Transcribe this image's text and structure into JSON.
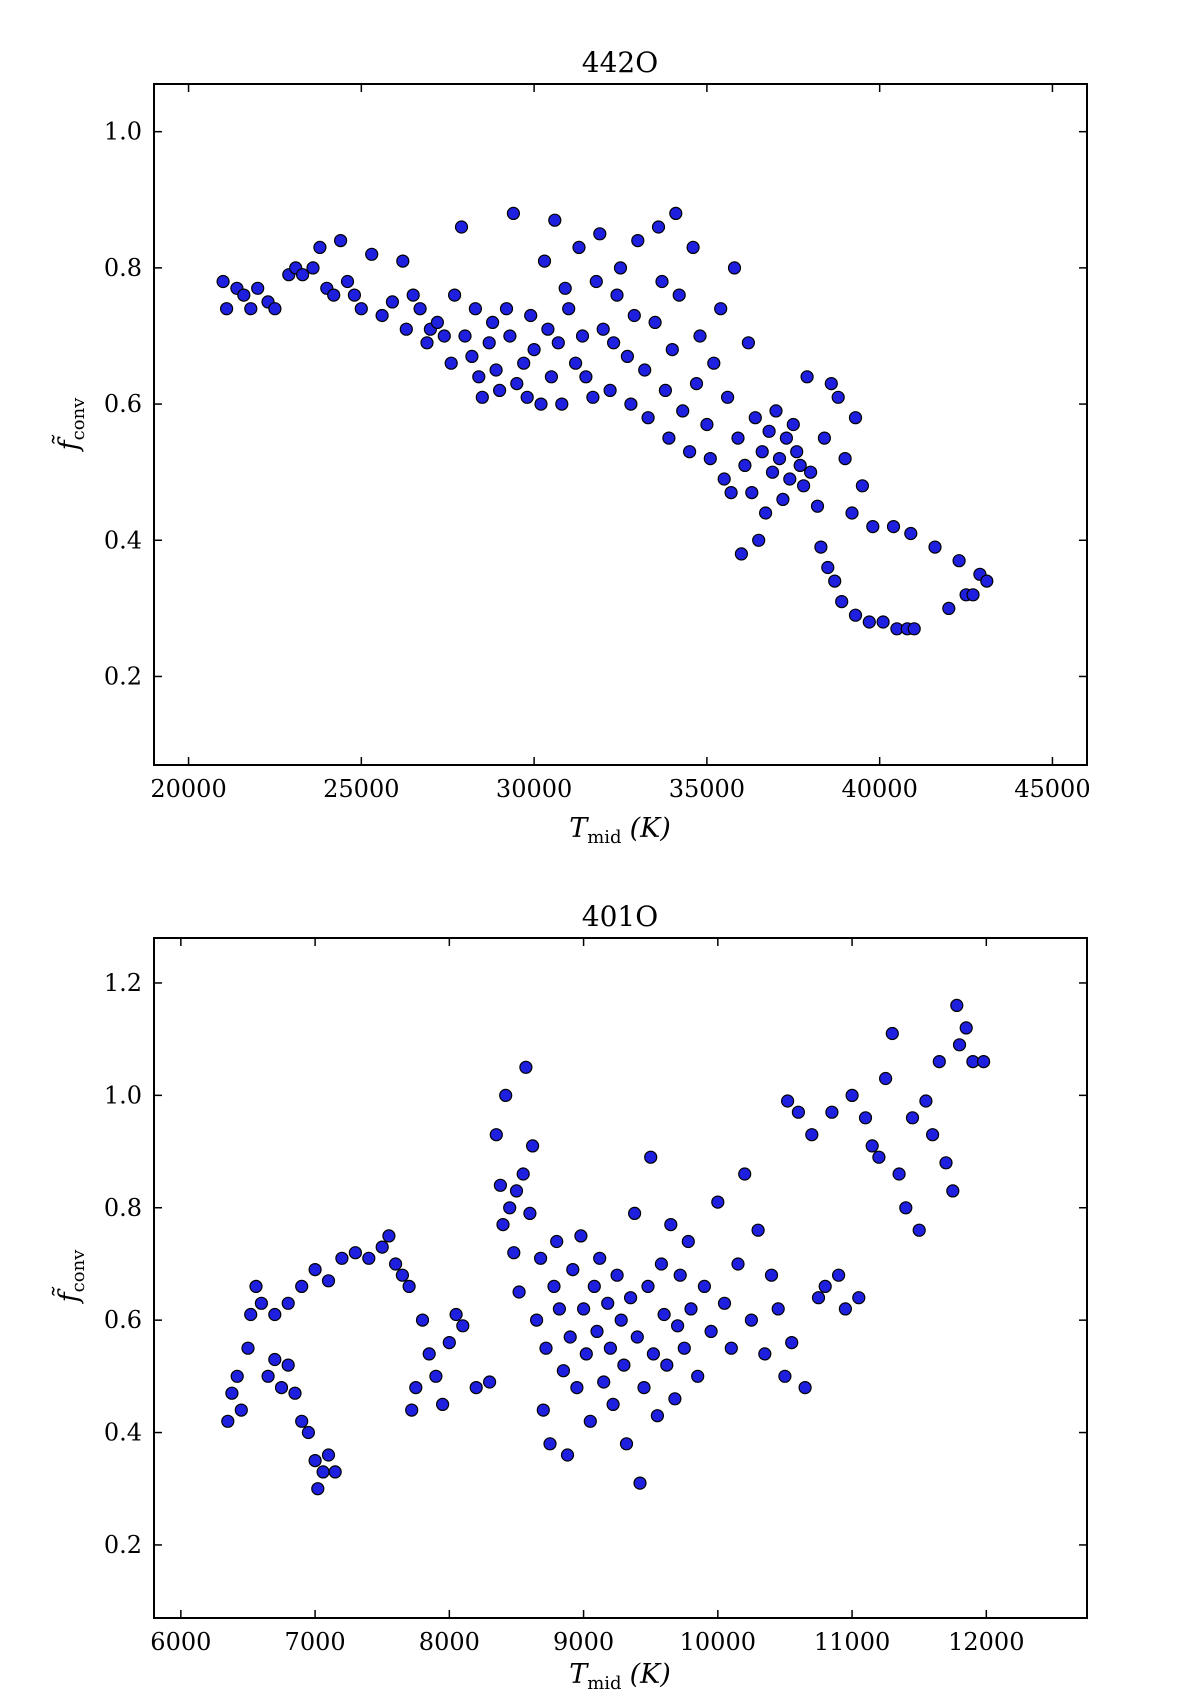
{
  "chart_data": [
    {
      "type": "scatter",
      "title": "442O",
      "xlabel": "T",
      "xlabel_sub": "mid",
      "xlabel_unit": "(K)",
      "ylabel": "f̃",
      "ylabel_sub": "conv",
      "xlim": [
        19000,
        46000
      ],
      "ylim": [
        0.07,
        1.07
      ],
      "xticks": [
        20000,
        25000,
        30000,
        35000,
        40000,
        45000
      ],
      "yticks": [
        0.2,
        0.4,
        0.6,
        0.8,
        1.0
      ],
      "xtick_labels": [
        "20000",
        "25000",
        "30000",
        "35000",
        "40000",
        "45000"
      ],
      "ytick_labels": [
        "0.2",
        "0.4",
        "0.6",
        "0.8",
        "1.0"
      ],
      "marker_color": "#1f1fe0",
      "points": [
        [
          21000,
          0.78
        ],
        [
          21100,
          0.74
        ],
        [
          21400,
          0.77
        ],
        [
          21600,
          0.76
        ],
        [
          21800,
          0.74
        ],
        [
          22000,
          0.77
        ],
        [
          22300,
          0.75
        ],
        [
          22500,
          0.74
        ],
        [
          22900,
          0.79
        ],
        [
          23100,
          0.8
        ],
        [
          23300,
          0.79
        ],
        [
          23600,
          0.8
        ],
        [
          23800,
          0.83
        ],
        [
          24000,
          0.77
        ],
        [
          24200,
          0.76
        ],
        [
          24400,
          0.84
        ],
        [
          24600,
          0.78
        ],
        [
          24800,
          0.76
        ],
        [
          25000,
          0.74
        ],
        [
          25300,
          0.82
        ],
        [
          25600,
          0.73
        ],
        [
          25900,
          0.75
        ],
        [
          26200,
          0.81
        ],
        [
          26300,
          0.71
        ],
        [
          26500,
          0.76
        ],
        [
          26700,
          0.74
        ],
        [
          26900,
          0.69
        ],
        [
          27000,
          0.71
        ],
        [
          27200,
          0.72
        ],
        [
          27400,
          0.7
        ],
        [
          27600,
          0.66
        ],
        [
          27700,
          0.76
        ],
        [
          27900,
          0.86
        ],
        [
          28000,
          0.7
        ],
        [
          28200,
          0.67
        ],
        [
          28300,
          0.74
        ],
        [
          28400,
          0.64
        ],
        [
          28500,
          0.61
        ],
        [
          28700,
          0.69
        ],
        [
          28800,
          0.72
        ],
        [
          28900,
          0.65
        ],
        [
          29000,
          0.62
        ],
        [
          29200,
          0.74
        ],
        [
          29300,
          0.7
        ],
        [
          29400,
          0.88
        ],
        [
          29500,
          0.63
        ],
        [
          29700,
          0.66
        ],
        [
          29800,
          0.61
        ],
        [
          29900,
          0.73
        ],
        [
          30000,
          0.68
        ],
        [
          30200,
          0.6
        ],
        [
          30300,
          0.81
        ],
        [
          30400,
          0.71
        ],
        [
          30500,
          0.64
        ],
        [
          30600,
          0.87
        ],
        [
          30700,
          0.69
        ],
        [
          30800,
          0.6
        ],
        [
          30900,
          0.77
        ],
        [
          31000,
          0.74
        ],
        [
          31200,
          0.66
        ],
        [
          31300,
          0.83
        ],
        [
          31400,
          0.7
        ],
        [
          31500,
          0.64
        ],
        [
          31700,
          0.61
        ],
        [
          31800,
          0.78
        ],
        [
          31900,
          0.85
        ],
        [
          32000,
          0.71
        ],
        [
          32200,
          0.62
        ],
        [
          32300,
          0.69
        ],
        [
          32400,
          0.76
        ],
        [
          32500,
          0.8
        ],
        [
          32700,
          0.67
        ],
        [
          32800,
          0.6
        ],
        [
          32900,
          0.73
        ],
        [
          33000,
          0.84
        ],
        [
          33200,
          0.65
        ],
        [
          33300,
          0.58
        ],
        [
          33500,
          0.72
        ],
        [
          33600,
          0.86
        ],
        [
          33700,
          0.78
        ],
        [
          33800,
          0.62
        ],
        [
          33900,
          0.55
        ],
        [
          34000,
          0.68
        ],
        [
          34100,
          0.88
        ],
        [
          34200,
          0.76
        ],
        [
          34300,
          0.59
        ],
        [
          34500,
          0.53
        ],
        [
          34600,
          0.83
        ],
        [
          34700,
          0.63
        ],
        [
          34800,
          0.7
        ],
        [
          35000,
          0.57
        ],
        [
          35100,
          0.52
        ],
        [
          35200,
          0.66
        ],
        [
          35400,
          0.74
        ],
        [
          35500,
          0.49
        ],
        [
          35600,
          0.61
        ],
        [
          35700,
          0.47
        ],
        [
          35800,
          0.8
        ],
        [
          35900,
          0.55
        ],
        [
          36000,
          0.38
        ],
        [
          36100,
          0.51
        ],
        [
          36200,
          0.69
        ],
        [
          36300,
          0.47
        ],
        [
          36400,
          0.58
        ],
        [
          36500,
          0.4
        ],
        [
          36600,
          0.53
        ],
        [
          36700,
          0.44
        ],
        [
          36800,
          0.56
        ],
        [
          36900,
          0.5
        ],
        [
          37000,
          0.59
        ],
        [
          37100,
          0.52
        ],
        [
          37200,
          0.46
        ],
        [
          37300,
          0.55
        ],
        [
          37400,
          0.49
        ],
        [
          37500,
          0.57
        ],
        [
          37600,
          0.53
        ],
        [
          37700,
          0.51
        ],
        [
          37800,
          0.48
        ],
        [
          37900,
          0.64
        ],
        [
          38000,
          0.5
        ],
        [
          38200,
          0.45
        ],
        [
          38400,
          0.55
        ],
        [
          38600,
          0.63
        ],
        [
          38800,
          0.61
        ],
        [
          39000,
          0.52
        ],
        [
          39200,
          0.44
        ],
        [
          39300,
          0.58
        ],
        [
          39500,
          0.48
        ],
        [
          38300,
          0.39
        ],
        [
          38500,
          0.36
        ],
        [
          38700,
          0.34
        ],
        [
          38900,
          0.31
        ],
        [
          39300,
          0.29
        ],
        [
          39700,
          0.28
        ],
        [
          40100,
          0.28
        ],
        [
          40500,
          0.27
        ],
        [
          40800,
          0.27
        ],
        [
          41000,
          0.27
        ],
        [
          39800,
          0.42
        ],
        [
          40400,
          0.42
        ],
        [
          40900,
          0.41
        ],
        [
          41600,
          0.39
        ],
        [
          42000,
          0.3
        ],
        [
          42300,
          0.37
        ],
        [
          42500,
          0.32
        ],
        [
          42700,
          0.32
        ],
        [
          42900,
          0.35
        ],
        [
          43100,
          0.34
        ]
      ]
    },
    {
      "type": "scatter",
      "title": "401O",
      "xlabel": "T",
      "xlabel_sub": "mid",
      "xlabel_unit": "(K)",
      "ylabel": "f̃",
      "ylabel_sub": "conv",
      "xlim": [
        5800,
        12750
      ],
      "ylim": [
        0.07,
        1.28
      ],
      "xticks": [
        6000,
        7000,
        8000,
        9000,
        10000,
        11000,
        12000
      ],
      "yticks": [
        0.2,
        0.4,
        0.6,
        0.8,
        1.0,
        1.2
      ],
      "xtick_labels": [
        "6000",
        "7000",
        "8000",
        "9000",
        "10000",
        "11000",
        "12000"
      ],
      "ytick_labels": [
        "0.2",
        "0.4",
        "0.6",
        "0.8",
        "1.0",
        "1.2"
      ],
      "marker_color": "#1f1fe0",
      "points": [
        [
          6350,
          0.42
        ],
        [
          6380,
          0.47
        ],
        [
          6420,
          0.5
        ],
        [
          6450,
          0.44
        ],
        [
          6500,
          0.55
        ],
        [
          6520,
          0.61
        ],
        [
          6560,
          0.66
        ],
        [
          6600,
          0.63
        ],
        [
          6650,
          0.5
        ],
        [
          6700,
          0.53
        ],
        [
          6750,
          0.48
        ],
        [
          6800,
          0.52
        ],
        [
          6850,
          0.47
        ],
        [
          6900,
          0.42
        ],
        [
          6950,
          0.4
        ],
        [
          7000,
          0.35
        ],
        [
          7020,
          0.3
        ],
        [
          7060,
          0.33
        ],
        [
          7100,
          0.36
        ],
        [
          7150,
          0.33
        ],
        [
          6700,
          0.61
        ],
        [
          6800,
          0.63
        ],
        [
          6900,
          0.66
        ],
        [
          7000,
          0.69
        ],
        [
          7100,
          0.67
        ],
        [
          7200,
          0.71
        ],
        [
          7300,
          0.72
        ],
        [
          7400,
          0.71
        ],
        [
          7500,
          0.73
        ],
        [
          7550,
          0.75
        ],
        [
          7600,
          0.7
        ],
        [
          7650,
          0.68
        ],
        [
          7700,
          0.66
        ],
        [
          7720,
          0.44
        ],
        [
          7750,
          0.48
        ],
        [
          7800,
          0.6
        ],
        [
          7850,
          0.54
        ],
        [
          7900,
          0.5
        ],
        [
          7950,
          0.45
        ],
        [
          8000,
          0.56
        ],
        [
          8050,
          0.61
        ],
        [
          8100,
          0.59
        ],
        [
          8200,
          0.48
        ],
        [
          8300,
          0.49
        ],
        [
          8350,
          0.93
        ],
        [
          8380,
          0.84
        ],
        [
          8400,
          0.77
        ],
        [
          8420,
          1.0
        ],
        [
          8450,
          0.8
        ],
        [
          8480,
          0.72
        ],
        [
          8500,
          0.83
        ],
        [
          8520,
          0.65
        ],
        [
          8550,
          0.86
        ],
        [
          8570,
          1.05
        ],
        [
          8600,
          0.79
        ],
        [
          8620,
          0.91
        ],
        [
          8650,
          0.6
        ],
        [
          8680,
          0.71
        ],
        [
          8700,
          0.44
        ],
        [
          8720,
          0.55
        ],
        [
          8750,
          0.38
        ],
        [
          8780,
          0.66
        ],
        [
          8800,
          0.74
        ],
        [
          8820,
          0.62
        ],
        [
          8850,
          0.51
        ],
        [
          8880,
          0.36
        ],
        [
          8900,
          0.57
        ],
        [
          8920,
          0.69
        ],
        [
          8950,
          0.48
        ],
        [
          8980,
          0.75
        ],
        [
          9000,
          0.62
        ],
        [
          9020,
          0.54
        ],
        [
          9050,
          0.42
        ],
        [
          9080,
          0.66
        ],
        [
          9100,
          0.58
        ],
        [
          9120,
          0.71
        ],
        [
          9150,
          0.49
        ],
        [
          9180,
          0.63
        ],
        [
          9200,
          0.55
        ],
        [
          9220,
          0.45
        ],
        [
          9250,
          0.68
        ],
        [
          9280,
          0.6
        ],
        [
          9300,
          0.52
        ],
        [
          9320,
          0.38
        ],
        [
          9350,
          0.64
        ],
        [
          9380,
          0.79
        ],
        [
          9400,
          0.57
        ],
        [
          9420,
          0.31
        ],
        [
          9450,
          0.48
        ],
        [
          9480,
          0.66
        ],
        [
          9500,
          0.89
        ],
        [
          9520,
          0.54
        ],
        [
          9550,
          0.43
        ],
        [
          9580,
          0.7
        ],
        [
          9600,
          0.61
        ],
        [
          9620,
          0.52
        ],
        [
          9650,
          0.77
        ],
        [
          9680,
          0.46
        ],
        [
          9700,
          0.59
        ],
        [
          9720,
          0.68
        ],
        [
          9750,
          0.55
        ],
        [
          9780,
          0.74
        ],
        [
          9800,
          0.62
        ],
        [
          9850,
          0.5
        ],
        [
          9900,
          0.66
        ],
        [
          9950,
          0.58
        ],
        [
          10000,
          0.81
        ],
        [
          10050,
          0.63
        ],
        [
          10100,
          0.55
        ],
        [
          10150,
          0.7
        ],
        [
          10200,
          0.86
        ],
        [
          10250,
          0.6
        ],
        [
          10300,
          0.76
        ],
        [
          10350,
          0.54
        ],
        [
          10400,
          0.68
        ],
        [
          10450,
          0.62
        ],
        [
          10500,
          0.5
        ],
        [
          10520,
          0.99
        ],
        [
          10550,
          0.56
        ],
        [
          10600,
          0.97
        ],
        [
          10650,
          0.48
        ],
        [
          10700,
          0.93
        ],
        [
          10750,
          0.64
        ],
        [
          10800,
          0.66
        ],
        [
          10850,
          0.97
        ],
        [
          10900,
          0.68
        ],
        [
          10950,
          0.62
        ],
        [
          11000,
          1.0
        ],
        [
          11050,
          0.64
        ],
        [
          11100,
          0.96
        ],
        [
          11150,
          0.91
        ],
        [
          11200,
          0.89
        ],
        [
          11250,
          1.03
        ],
        [
          11300,
          1.11
        ],
        [
          11350,
          0.86
        ],
        [
          11400,
          0.8
        ],
        [
          11450,
          0.96
        ],
        [
          11500,
          0.76
        ],
        [
          11550,
          0.99
        ],
        [
          11600,
          0.93
        ],
        [
          11650,
          1.06
        ],
        [
          11700,
          0.88
        ],
        [
          11750,
          0.83
        ],
        [
          11780,
          1.16
        ],
        [
          11800,
          1.09
        ],
        [
          11850,
          1.12
        ],
        [
          11900,
          1.06
        ],
        [
          11980,
          1.06
        ]
      ]
    }
  ]
}
